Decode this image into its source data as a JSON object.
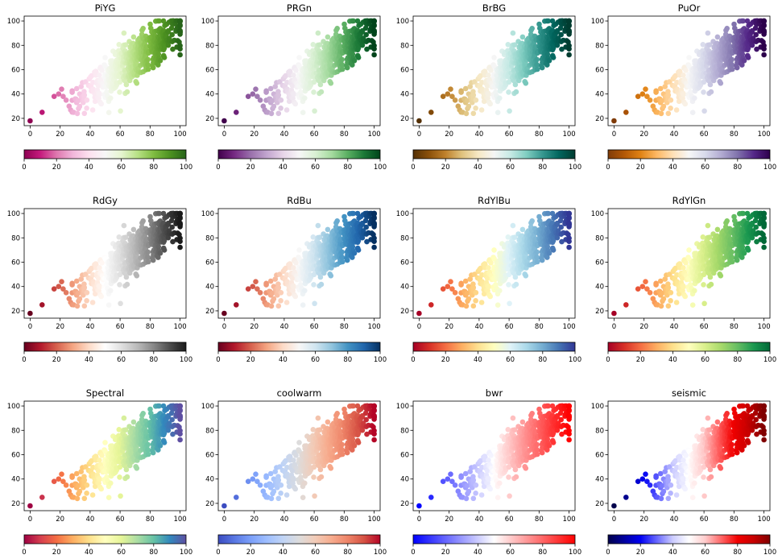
{
  "figure": {
    "colormaps": [
      "PiYG",
      "PRGn",
      "BrBG",
      "PuOr",
      "RdGy",
      "RdBu",
      "RdYlBu",
      "RdYlGn",
      "Spectral",
      "coolwarm",
      "bwr",
      "seismic"
    ]
  },
  "chart_data": [
    {
      "type": "scatter",
      "title": "PiYG",
      "xlim": [
        -4,
        104
      ],
      "ylim": [
        14,
        104
      ],
      "xticks": [
        0,
        20,
        40,
        60,
        80,
        100
      ],
      "yticks": [
        20,
        40,
        60,
        80,
        100
      ],
      "colorbar": {
        "range": [
          0,
          100
        ],
        "ticks": [
          0,
          20,
          40,
          60,
          80,
          100
        ]
      },
      "colors": [
        "#8e0152",
        "#c51b7d",
        "#de77ae",
        "#f1b6da",
        "#fde0ef",
        "#f7f7f7",
        "#e6f5d0",
        "#b8e186",
        "#7fbc41",
        "#4d9221",
        "#276419"
      ]
    },
    {
      "type": "scatter",
      "title": "PRGn",
      "xlim": [
        -4,
        104
      ],
      "ylim": [
        14,
        104
      ],
      "xticks": [
        0,
        20,
        40,
        60,
        80,
        100
      ],
      "yticks": [
        20,
        40,
        60,
        80,
        100
      ],
      "colorbar": {
        "range": [
          0,
          100
        ],
        "ticks": [
          0,
          20,
          40,
          60,
          80,
          100
        ]
      },
      "colors": [
        "#40004b",
        "#762a83",
        "#9970ab",
        "#c2a5cf",
        "#e7d4e8",
        "#f7f7f7",
        "#d9f0d3",
        "#a6dba0",
        "#5aae61",
        "#1b7837",
        "#00441b"
      ]
    },
    {
      "type": "scatter",
      "title": "BrBG",
      "xlim": [
        -4,
        104
      ],
      "ylim": [
        14,
        104
      ],
      "xticks": [
        0,
        20,
        40,
        60,
        80,
        100
      ],
      "yticks": [
        20,
        40,
        60,
        80,
        100
      ],
      "colorbar": {
        "range": [
          0,
          100
        ],
        "ticks": [
          0,
          20,
          40,
          60,
          80,
          100
        ]
      },
      "colors": [
        "#543005",
        "#8c510a",
        "#bf812d",
        "#dfc27d",
        "#f6e8c3",
        "#f5f5f5",
        "#c7eae5",
        "#80cdc1",
        "#35978f",
        "#01665e",
        "#003c30"
      ]
    },
    {
      "type": "scatter",
      "title": "PuOr",
      "xlim": [
        -4,
        104
      ],
      "ylim": [
        14,
        104
      ],
      "xticks": [
        0,
        20,
        40,
        60,
        80,
        100
      ],
      "yticks": [
        20,
        40,
        60,
        80,
        100
      ],
      "colorbar": {
        "range": [
          0,
          100
        ],
        "ticks": [
          0,
          20,
          40,
          60,
          80,
          100
        ]
      },
      "colors": [
        "#7f3b08",
        "#b35806",
        "#e08214",
        "#fdb863",
        "#fee0b6",
        "#f7f7f7",
        "#d8daeb",
        "#b2abd2",
        "#8073ac",
        "#542788",
        "#2d004b"
      ]
    },
    {
      "type": "scatter",
      "title": "RdGy",
      "xlim": [
        -4,
        104
      ],
      "ylim": [
        14,
        104
      ],
      "xticks": [
        0,
        20,
        40,
        60,
        80,
        100
      ],
      "yticks": [
        20,
        40,
        60,
        80,
        100
      ],
      "colorbar": {
        "range": [
          0,
          100
        ],
        "ticks": [
          0,
          20,
          40,
          60,
          80,
          100
        ]
      },
      "colors": [
        "#67001f",
        "#b2182b",
        "#d6604d",
        "#f4a582",
        "#fddbc7",
        "#ffffff",
        "#e0e0e0",
        "#bababa",
        "#878787",
        "#4d4d4d",
        "#1a1a1a"
      ]
    },
    {
      "type": "scatter",
      "title": "RdBu",
      "xlim": [
        -4,
        104
      ],
      "ylim": [
        14,
        104
      ],
      "xticks": [
        0,
        20,
        40,
        60,
        80,
        100
      ],
      "yticks": [
        20,
        40,
        60,
        80,
        100
      ],
      "colorbar": {
        "range": [
          0,
          100
        ],
        "ticks": [
          0,
          20,
          40,
          60,
          80,
          100
        ]
      },
      "colors": [
        "#67001f",
        "#b2182b",
        "#d6604d",
        "#f4a582",
        "#fddbc7",
        "#f7f7f7",
        "#d1e5f0",
        "#92c5de",
        "#4393c3",
        "#2166ac",
        "#053061"
      ]
    },
    {
      "type": "scatter",
      "title": "RdYlBu",
      "xlim": [
        -4,
        104
      ],
      "ylim": [
        14,
        104
      ],
      "xticks": [
        0,
        20,
        40,
        60,
        80,
        100
      ],
      "yticks": [
        20,
        40,
        60,
        80,
        100
      ],
      "colorbar": {
        "range": [
          0,
          100
        ],
        "ticks": [
          0,
          20,
          40,
          60,
          80,
          100
        ]
      },
      "colors": [
        "#a50026",
        "#d73027",
        "#f46d43",
        "#fdae61",
        "#fee090",
        "#ffffbf",
        "#e0f3f8",
        "#abd9e9",
        "#74add1",
        "#4575b4",
        "#313695"
      ]
    },
    {
      "type": "scatter",
      "title": "RdYlGn",
      "xlim": [
        -4,
        104
      ],
      "ylim": [
        14,
        104
      ],
      "xticks": [
        0,
        20,
        40,
        60,
        80,
        100
      ],
      "yticks": [
        20,
        40,
        60,
        80,
        100
      ],
      "colorbar": {
        "range": [
          0,
          100
        ],
        "ticks": [
          0,
          20,
          40,
          60,
          80,
          100
        ]
      },
      "colors": [
        "#a50026",
        "#d73027",
        "#f46d43",
        "#fdae61",
        "#fee08b",
        "#ffffbf",
        "#d9ef8b",
        "#a6d96a",
        "#66bd63",
        "#1a9850",
        "#006837"
      ]
    },
    {
      "type": "scatter",
      "title": "Spectral",
      "xlim": [
        -4,
        104
      ],
      "ylim": [
        14,
        104
      ],
      "xticks": [
        0,
        20,
        40,
        60,
        80,
        100
      ],
      "yticks": [
        20,
        40,
        60,
        80,
        100
      ],
      "colorbar": {
        "range": [
          0,
          100
        ],
        "ticks": [
          0,
          20,
          40,
          60,
          80,
          100
        ]
      },
      "colors": [
        "#9e0142",
        "#d53e4f",
        "#f46d43",
        "#fdae61",
        "#fee08b",
        "#ffffbf",
        "#e6f598",
        "#abdda4",
        "#66c2a5",
        "#3288bd",
        "#5e4fa2"
      ]
    },
    {
      "type": "scatter",
      "title": "coolwarm",
      "xlim": [
        -4,
        104
      ],
      "ylim": [
        14,
        104
      ],
      "xticks": [
        0,
        20,
        40,
        60,
        80,
        100
      ],
      "yticks": [
        20,
        40,
        60,
        80,
        100
      ],
      "colorbar": {
        "range": [
          0,
          100
        ],
        "ticks": [
          0,
          20,
          40,
          60,
          80,
          100
        ]
      },
      "colors": [
        "#3b4cc0",
        "#5977e3",
        "#7b9ff9",
        "#9ebeff",
        "#c0d4f5",
        "#dddcdc",
        "#f2cbb7",
        "#f7ac8e",
        "#ee8468",
        "#d65244",
        "#b40426"
      ]
    },
    {
      "type": "scatter",
      "title": "bwr",
      "xlim": [
        -4,
        104
      ],
      "ylim": [
        14,
        104
      ],
      "xticks": [
        0,
        20,
        40,
        60,
        80,
        100
      ],
      "yticks": [
        20,
        40,
        60,
        80,
        100
      ],
      "colorbar": {
        "range": [
          0,
          100
        ],
        "ticks": [
          0,
          20,
          40,
          60,
          80,
          100
        ]
      },
      "colors": [
        "#0000ff",
        "#3333ff",
        "#6666ff",
        "#9999ff",
        "#ccccff",
        "#ffffff",
        "#ffcccc",
        "#ff9999",
        "#ff6666",
        "#ff3333",
        "#ff0000"
      ]
    },
    {
      "type": "scatter",
      "title": "seismic",
      "xlim": [
        -4,
        104
      ],
      "ylim": [
        14,
        104
      ],
      "xticks": [
        0,
        20,
        40,
        60,
        80,
        100
      ],
      "yticks": [
        20,
        40,
        60,
        80,
        100
      ],
      "colorbar": {
        "range": [
          0,
          100
        ],
        "ticks": [
          0,
          20,
          40,
          60,
          80,
          100
        ]
      },
      "colors": [
        "#00004c",
        "#00009f",
        "#0000f2",
        "#6666ff",
        "#ccccff",
        "#ffffff",
        "#ffcccc",
        "#ff6666",
        "#f20000",
        "#c70000",
        "#800000"
      ]
    }
  ]
}
